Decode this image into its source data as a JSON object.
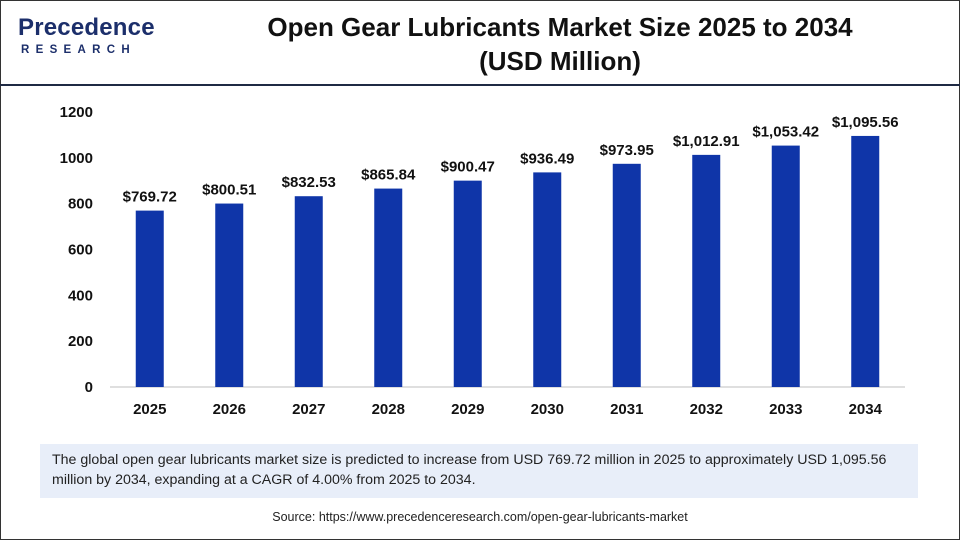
{
  "brand": {
    "name": "Precedence",
    "tagline": "RESEARCH",
    "color": "#1c2f6b"
  },
  "title": {
    "line1": "Open Gear Lubricants Market Size 2025 to 2034",
    "line2": "(USD Million)"
  },
  "chart_data": {
    "type": "bar",
    "title": "Open Gear Lubricants Market Size 2025 to 2034 (USD Million)",
    "xlabel": "",
    "ylabel": "",
    "categories": [
      "2025",
      "2026",
      "2027",
      "2028",
      "2029",
      "2030",
      "2031",
      "2032",
      "2033",
      "2034"
    ],
    "values": [
      769.72,
      800.51,
      832.53,
      865.84,
      900.47,
      936.49,
      973.95,
      1012.91,
      1053.42,
      1095.56
    ],
    "data_labels": [
      "$769.72",
      "$800.51",
      "$832.53",
      "$865.84",
      "$900.47",
      "$936.49",
      "$973.95",
      "$1,012.91",
      "$1,053.42",
      "$1,095.56"
    ],
    "ylim": [
      0,
      1200
    ],
    "yticks": [
      0,
      200,
      400,
      600,
      800,
      1000,
      1200
    ],
    "grid": false,
    "bar_color": "#0f35a8"
  },
  "caption": "The global open gear lubricants market size is predicted to increase from USD 769.72 million in 2025 to approximately USD 1,095.56 million by 2034, expanding at a CAGR of 4.00% from 2025 to 2034.",
  "source": "Source: https://www.precedenceresearch.com/open-gear-lubricants-market"
}
